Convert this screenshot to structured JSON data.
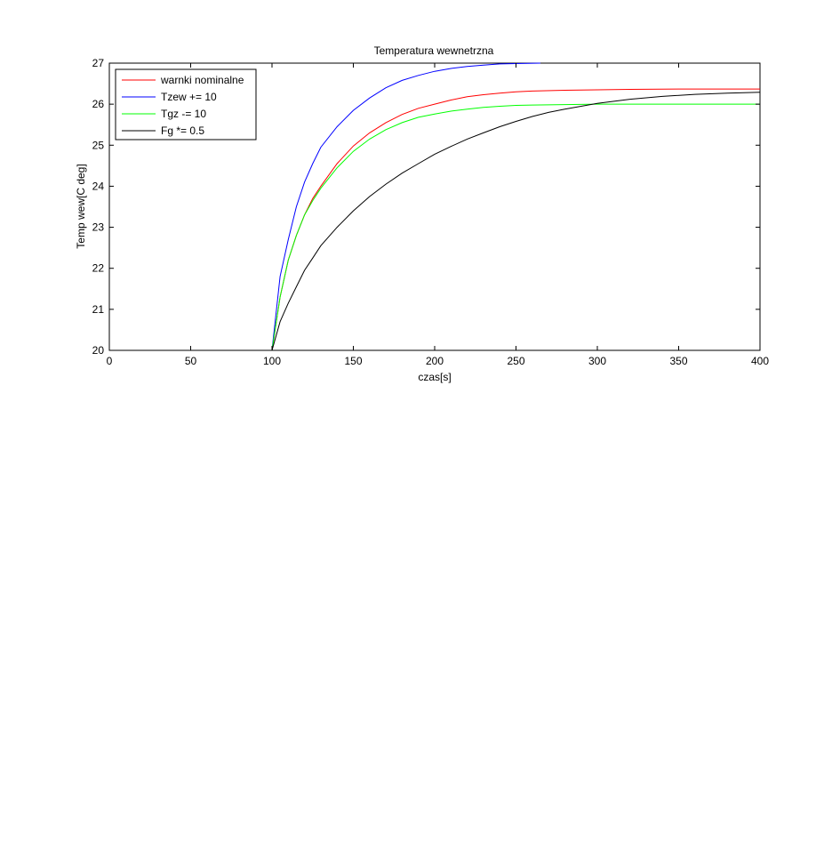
{
  "chart_data": {
    "type": "line",
    "title": "Temperatura wewnetrzna",
    "xlabel": "czas[s]",
    "ylabel": "Temp wew[C deg]",
    "xlim": [
      0,
      400
    ],
    "ylim": [
      20,
      27
    ],
    "xticks": [
      0,
      50,
      100,
      150,
      200,
      250,
      300,
      350,
      400
    ],
    "yticks": [
      20,
      21,
      22,
      23,
      24,
      25,
      26,
      27
    ],
    "grid": false,
    "legend_position": "top-left",
    "series": [
      {
        "name": "warnki nominalne",
        "color": "#ff0000",
        "x": [
          0,
          100,
          105,
          110,
          115,
          120,
          125,
          130,
          140,
          150,
          160,
          170,
          180,
          190,
          200,
          210,
          220,
          230,
          240,
          250,
          260,
          280,
          300,
          320,
          350,
          400
        ],
        "y": [
          20,
          20,
          21.3,
          22.2,
          22.8,
          23.3,
          23.7,
          24.0,
          24.55,
          24.98,
          25.3,
          25.55,
          25.75,
          25.9,
          26.0,
          26.1,
          26.18,
          26.23,
          26.27,
          26.3,
          26.32,
          26.34,
          26.35,
          26.36,
          26.37,
          26.37
        ]
      },
      {
        "name": "Tzew += 10",
        "color": "#0000ff",
        "x": [
          0,
          100,
          105,
          110,
          115,
          120,
          125,
          130,
          140,
          150,
          160,
          170,
          180,
          190,
          200,
          210,
          220,
          230,
          240,
          250,
          265
        ],
        "y": [
          20,
          20,
          21.8,
          22.7,
          23.5,
          24.1,
          24.55,
          24.95,
          25.45,
          25.85,
          26.15,
          26.4,
          26.58,
          26.7,
          26.8,
          26.87,
          26.92,
          26.95,
          26.98,
          26.99,
          27.0
        ]
      },
      {
        "name": "Tgz -= 10",
        "color": "#00ff00",
        "x": [
          0,
          100,
          105,
          110,
          115,
          120,
          125,
          130,
          140,
          150,
          160,
          170,
          180,
          190,
          200,
          210,
          220,
          230,
          240,
          250,
          260,
          280,
          300,
          350,
          400
        ],
        "y": [
          20,
          20,
          21.3,
          22.2,
          22.8,
          23.3,
          23.65,
          23.95,
          24.45,
          24.85,
          25.15,
          25.38,
          25.55,
          25.68,
          25.76,
          25.83,
          25.88,
          25.92,
          25.95,
          25.97,
          25.98,
          25.99,
          26.0,
          26.0,
          26.0
        ]
      },
      {
        "name": "Fg *= 0.5",
        "color": "#000000",
        "x": [
          0,
          100,
          105,
          110,
          115,
          120,
          125,
          130,
          140,
          150,
          160,
          170,
          180,
          190,
          200,
          210,
          220,
          230,
          240,
          250,
          260,
          270,
          280,
          300,
          320,
          340,
          360,
          380,
          400
        ],
        "y": [
          20,
          20,
          20.7,
          21.15,
          21.55,
          21.95,
          22.25,
          22.55,
          23.0,
          23.4,
          23.75,
          24.05,
          24.32,
          24.55,
          24.78,
          24.97,
          25.15,
          25.3,
          25.45,
          25.58,
          25.7,
          25.8,
          25.88,
          26.02,
          26.12,
          26.19,
          26.24,
          26.27,
          26.29
        ]
      }
    ]
  }
}
